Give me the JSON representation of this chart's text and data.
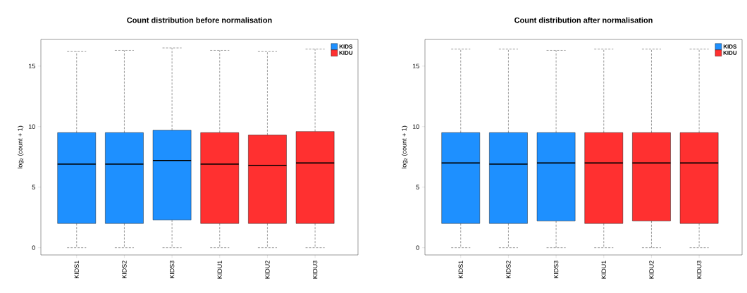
{
  "chart_data": [
    {
      "type": "box",
      "title": "Count distribution before normalisation",
      "ylabel": "log$_{2}$ (count + 1)",
      "categories": [
        "KIDS1",
        "KIDS2",
        "KIDS3",
        "KIDU1",
        "KIDU2",
        "KIDU3"
      ],
      "ylim": [
        -0.6,
        17.2
      ],
      "yticks": [
        0,
        5,
        10,
        15
      ],
      "grid": false,
      "legend": "top right",
      "series": [
        {
          "name": "KIDS",
          "color": "#1e90ff",
          "boxes": [
            {
              "low": 0,
              "q1": 2.0,
              "median": 6.9,
              "q3": 9.5,
              "high": 16.2
            },
            {
              "low": 0,
              "q1": 2.0,
              "median": 6.9,
              "q3": 9.5,
              "high": 16.3
            },
            {
              "low": 0,
              "q1": 2.3,
              "median": 7.2,
              "q3": 9.7,
              "high": 16.5
            },
            null,
            null,
            null
          ]
        },
        {
          "name": "KIDU",
          "color": "#ff3030",
          "boxes": [
            null,
            null,
            null,
            {
              "low": 0,
              "q1": 2.0,
              "median": 6.9,
              "q3": 9.5,
              "high": 16.3
            },
            {
              "low": 0,
              "q1": 2.0,
              "median": 6.8,
              "q3": 9.3,
              "high": 16.2
            },
            {
              "low": 0,
              "q1": 2.0,
              "median": 7.0,
              "q3": 9.6,
              "high": 16.4
            }
          ]
        }
      ]
    },
    {
      "type": "box",
      "title": "Count distribution after normalisation",
      "ylabel": "log$_{2}$ (count + 1)",
      "categories": [
        "KIDS1",
        "KIDS2",
        "KIDS3",
        "KIDU1",
        "KIDU2",
        "KIDU3"
      ],
      "ylim": [
        -0.6,
        17.2
      ],
      "yticks": [
        0,
        5,
        10,
        15
      ],
      "grid": false,
      "legend": "top right",
      "series": [
        {
          "name": "KIDS",
          "color": "#1e90ff",
          "boxes": [
            {
              "low": 0,
              "q1": 2.0,
              "median": 7.0,
              "q3": 9.5,
              "high": 16.4
            },
            {
              "low": 0,
              "q1": 2.0,
              "median": 6.9,
              "q3": 9.5,
              "high": 16.4
            },
            {
              "low": 0,
              "q1": 2.2,
              "median": 7.0,
              "q3": 9.5,
              "high": 16.3
            },
            null,
            null,
            null
          ]
        },
        {
          "name": "KIDU",
          "color": "#ff3030",
          "boxes": [
            null,
            null,
            null,
            {
              "low": 0,
              "q1": 2.0,
              "median": 7.0,
              "q3": 9.5,
              "high": 16.4
            },
            {
              "low": 0,
              "q1": 2.2,
              "median": 7.0,
              "q3": 9.5,
              "high": 16.4
            },
            {
              "low": 0,
              "q1": 2.0,
              "median": 7.0,
              "q3": 9.5,
              "high": 16.4
            }
          ]
        }
      ]
    }
  ]
}
